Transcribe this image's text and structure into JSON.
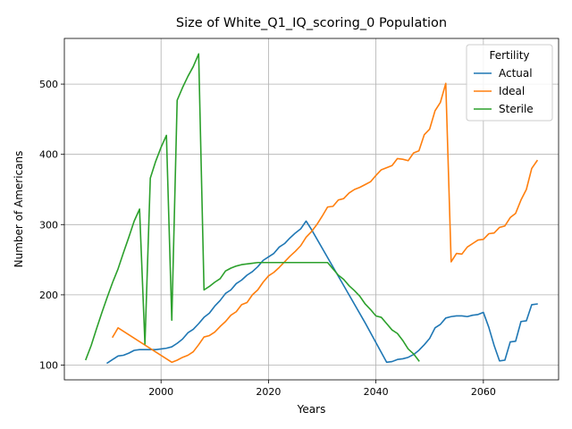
{
  "chart_data": {
    "type": "line",
    "title": "Size of White_Q1_IQ_scoring_0 Population",
    "xlabel": "Years",
    "ylabel": "Number of Americans",
    "xlim": [
      1982,
      2074
    ],
    "ylim": [
      79,
      565
    ],
    "xticks": [
      2000,
      2020,
      2040,
      2060
    ],
    "yticks": [
      100,
      200,
      300,
      400,
      500
    ],
    "grid": true,
    "legend": {
      "title": "Fertility",
      "position": "top-right"
    },
    "series": [
      {
        "name": "Actual",
        "color": "#1f77b4",
        "points": [
          [
            1990,
            103
          ],
          [
            1991,
            108
          ],
          [
            1992,
            113
          ],
          [
            1993,
            114
          ],
          [
            1994,
            117
          ],
          [
            1995,
            121
          ],
          [
            1996,
            122
          ],
          [
            1997,
            122
          ],
          [
            1998,
            122
          ],
          [
            1999,
            122
          ],
          [
            2000,
            123
          ],
          [
            2001,
            124
          ],
          [
            2002,
            126
          ],
          [
            2003,
            131
          ],
          [
            2004,
            137
          ],
          [
            2005,
            146
          ],
          [
            2006,
            151
          ],
          [
            2007,
            159
          ],
          [
            2008,
            168
          ],
          [
            2009,
            174
          ],
          [
            2010,
            184
          ],
          [
            2011,
            192
          ],
          [
            2012,
            202
          ],
          [
            2013,
            207
          ],
          [
            2014,
            216
          ],
          [
            2015,
            221
          ],
          [
            2016,
            228
          ],
          [
            2017,
            233
          ],
          [
            2018,
            240
          ],
          [
            2019,
            249
          ],
          [
            2020,
            254
          ],
          [
            2021,
            259
          ],
          [
            2022,
            268
          ],
          [
            2023,
            273
          ],
          [
            2024,
            281
          ],
          [
            2025,
            288
          ],
          [
            2026,
            294
          ],
          [
            2027,
            305
          ],
          [
            2028,
            293
          ],
          [
            2038,
            160
          ],
          [
            2042,
            104
          ],
          [
            2043,
            105
          ],
          [
            2044,
            108
          ],
          [
            2045,
            109
          ],
          [
            2046,
            111
          ],
          [
            2047,
            115
          ],
          [
            2048,
            121
          ],
          [
            2049,
            129
          ],
          [
            2050,
            138
          ],
          [
            2051,
            153
          ],
          [
            2052,
            158
          ],
          [
            2053,
            167
          ],
          [
            2054,
            169
          ],
          [
            2055,
            170
          ],
          [
            2056,
            170
          ],
          [
            2057,
            169
          ],
          [
            2058,
            171
          ],
          [
            2059,
            172
          ],
          [
            2060,
            175
          ],
          [
            2061,
            154
          ],
          [
            2062,
            128
          ],
          [
            2063,
            106
          ],
          [
            2064,
            107
          ],
          [
            2065,
            133
          ],
          [
            2066,
            134
          ],
          [
            2067,
            162
          ],
          [
            2068,
            163
          ],
          [
            2069,
            186
          ],
          [
            2070,
            187
          ]
        ]
      },
      {
        "name": "Ideal",
        "color": "#ff7f0e",
        "points": [
          [
            1991,
            140
          ],
          [
            1992,
            153
          ],
          [
            2002,
            104
          ],
          [
            2003,
            107
          ],
          [
            2004,
            111
          ],
          [
            2005,
            114
          ],
          [
            2006,
            119
          ],
          [
            2007,
            129
          ],
          [
            2008,
            140
          ],
          [
            2009,
            142
          ],
          [
            2010,
            147
          ],
          [
            2011,
            155
          ],
          [
            2012,
            162
          ],
          [
            2013,
            171
          ],
          [
            2014,
            176
          ],
          [
            2015,
            186
          ],
          [
            2016,
            189
          ],
          [
            2017,
            200
          ],
          [
            2018,
            207
          ],
          [
            2019,
            218
          ],
          [
            2020,
            227
          ],
          [
            2021,
            232
          ],
          [
            2022,
            239
          ],
          [
            2023,
            247
          ],
          [
            2024,
            255
          ],
          [
            2025,
            262
          ],
          [
            2026,
            270
          ],
          [
            2027,
            282
          ],
          [
            2028,
            290
          ],
          [
            2029,
            300
          ],
          [
            2030,
            312
          ],
          [
            2031,
            325
          ],
          [
            2032,
            326
          ],
          [
            2033,
            335
          ],
          [
            2034,
            337
          ],
          [
            2035,
            345
          ],
          [
            2036,
            350
          ],
          [
            2037,
            353
          ],
          [
            2038,
            357
          ],
          [
            2039,
            361
          ],
          [
            2040,
            370
          ],
          [
            2041,
            378
          ],
          [
            2042,
            381
          ],
          [
            2043,
            384
          ],
          [
            2044,
            394
          ],
          [
            2045,
            393
          ],
          [
            2046,
            391
          ],
          [
            2047,
            402
          ],
          [
            2048,
            405
          ],
          [
            2049,
            428
          ],
          [
            2050,
            436
          ],
          [
            2051,
            462
          ],
          [
            2052,
            474
          ],
          [
            2053,
            501
          ],
          [
            2054,
            247
          ],
          [
            2055,
            259
          ],
          [
            2056,
            258
          ],
          [
            2057,
            268
          ],
          [
            2058,
            273
          ],
          [
            2059,
            278
          ],
          [
            2060,
            279
          ],
          [
            2061,
            287
          ],
          [
            2062,
            288
          ],
          [
            2063,
            296
          ],
          [
            2064,
            298
          ],
          [
            2065,
            310
          ],
          [
            2066,
            316
          ],
          [
            2067,
            335
          ],
          [
            2068,
            350
          ],
          [
            2069,
            380
          ],
          [
            2070,
            391
          ]
        ]
      },
      {
        "name": "Sterile",
        "color": "#2ca02c",
        "points": [
          [
            1986,
            108
          ],
          [
            1987,
            128
          ],
          [
            1988,
            152
          ],
          [
            1989,
            175
          ],
          [
            1990,
            197
          ],
          [
            1991,
            218
          ],
          [
            1992,
            237
          ],
          [
            1993,
            260
          ],
          [
            1994,
            282
          ],
          [
            1995,
            305
          ],
          [
            1996,
            322
          ],
          [
            1997,
            130
          ],
          [
            1998,
            366
          ],
          [
            1999,
            390
          ],
          [
            2000,
            410
          ],
          [
            2001,
            427
          ],
          [
            2002,
            164
          ],
          [
            2003,
            477
          ],
          [
            2004,
            495
          ],
          [
            2005,
            511
          ],
          [
            2006,
            525
          ],
          [
            2007,
            543
          ],
          [
            2008,
            207
          ],
          [
            2009,
            212
          ],
          [
            2010,
            218
          ],
          [
            2011,
            223
          ],
          [
            2012,
            234
          ],
          [
            2013,
            238
          ],
          [
            2014,
            241
          ],
          [
            2015,
            243
          ],
          [
            2016,
            244
          ],
          [
            2017,
            245
          ],
          [
            2018,
            246
          ],
          [
            2031,
            246
          ],
          [
            2032,
            237
          ],
          [
            2033,
            228
          ],
          [
            2034,
            222
          ],
          [
            2035,
            213
          ],
          [
            2036,
            206
          ],
          [
            2037,
            198
          ],
          [
            2038,
            187
          ],
          [
            2039,
            179
          ],
          [
            2040,
            170
          ],
          [
            2041,
            168
          ],
          [
            2042,
            159
          ],
          [
            2043,
            150
          ],
          [
            2044,
            145
          ],
          [
            2045,
            135
          ],
          [
            2046,
            123
          ],
          [
            2047,
            116
          ],
          [
            2048,
            106
          ]
        ]
      }
    ]
  }
}
